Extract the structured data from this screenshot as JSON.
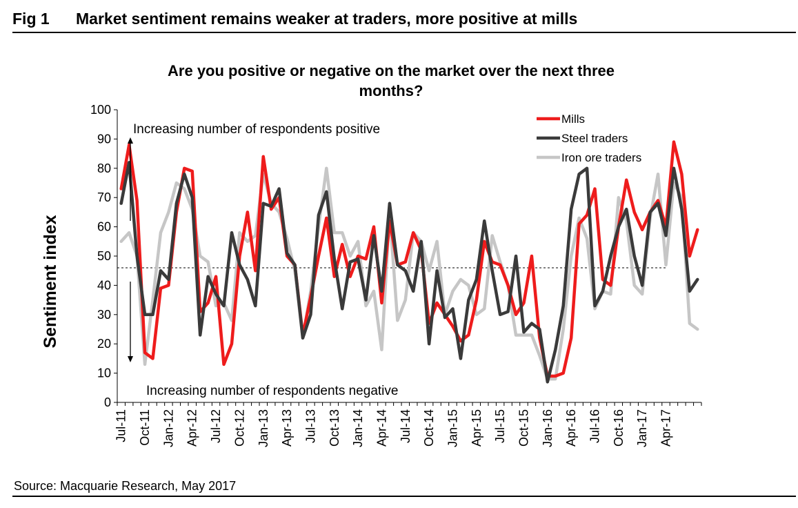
{
  "header": {
    "fig_label": "Fig 1",
    "fig_title": "Market sentiment remains weaker at traders, more positive at mills"
  },
  "footer": {
    "source": "Source: Macquarie Research, May 2017"
  },
  "colors": {
    "mills": "#ee1c1c",
    "steel_traders": "#3a3a3a",
    "iron_ore_traders": "#c6c6c6"
  },
  "chart_data": {
    "type": "line",
    "title": "Are you positive or negative on the market over the next three months?",
    "title_lines": [
      "Are you positive or negative on the market over the next three",
      "months?"
    ],
    "ylabel": "Sentiment index",
    "xlabel": "",
    "ylim": [
      0,
      100
    ],
    "yticks": [
      0,
      10,
      20,
      30,
      40,
      50,
      60,
      70,
      80,
      90,
      100
    ],
    "reference_line": 46,
    "x_tick_labels": [
      "Jul-11",
      "Oct-11",
      "Jan-12",
      "Apr-12",
      "Jul-12",
      "Oct-12",
      "Jan-13",
      "Apr-13",
      "Jul-13",
      "Oct-13",
      "Jan-14",
      "Apr-14",
      "Jul-14",
      "Oct-14",
      "Jan-15",
      "Apr-15",
      "Jul-15",
      "Oct-15",
      "Jan-16",
      "Apr-16",
      "Jul-16",
      "Oct-16",
      "Jan-17",
      "Apr-17"
    ],
    "x_start": "Jul-11",
    "x_end": "May-17",
    "annotations": {
      "positive": "Increasing number of respondents positive",
      "negative": "Increasing number of respondents negative"
    },
    "legend_position": "top-right",
    "series": [
      {
        "name": "Mills",
        "key": "mills",
        "values": [
          73,
          88,
          69,
          17,
          15,
          39,
          40,
          65,
          80,
          79,
          31,
          34,
          43,
          13,
          20,
          50,
          65,
          45,
          84,
          66,
          70,
          50,
          47,
          23,
          36,
          50,
          63,
          43,
          54,
          43,
          50,
          49,
          60,
          34,
          62,
          47,
          48,
          58,
          52,
          27,
          34,
          30,
          26,
          21,
          23,
          35,
          55,
          48,
          47,
          40,
          30,
          34,
          50,
          22,
          9,
          9,
          10,
          22,
          61,
          64,
          73,
          42,
          40,
          60,
          76,
          65,
          59,
          65,
          69,
          60,
          89,
          78,
          50,
          59
        ]
      },
      {
        "name": "Steel traders",
        "key": "steel_traders",
        "values": [
          68,
          82,
          50,
          30,
          30,
          45,
          42,
          68,
          78,
          70,
          23,
          43,
          37,
          33,
          58,
          47,
          42,
          33,
          68,
          67,
          73,
          51,
          47,
          22,
          30,
          64,
          72,
          49,
          32,
          48,
          49,
          35,
          57,
          38,
          68,
          47,
          45,
          38,
          55,
          20,
          45,
          29,
          32,
          15,
          35,
          42,
          62,
          45,
          30,
          31,
          50,
          24,
          27,
          25,
          7,
          18,
          33,
          66,
          78,
          80,
          33,
          38,
          50,
          60,
          66,
          50,
          40,
          65,
          68,
          57,
          80,
          66,
          38,
          42
        ]
      },
      {
        "name": "Iron ore traders",
        "key": "iron_ore_traders",
        "values": [
          55,
          58,
          50,
          13,
          35,
          58,
          65,
          75,
          73,
          66,
          50,
          48,
          33,
          34,
          28,
          58,
          55,
          57,
          78,
          68,
          65,
          56,
          45,
          22,
          38,
          60,
          80,
          58,
          58,
          50,
          55,
          33,
          38,
          18,
          65,
          28,
          35,
          58,
          55,
          45,
          55,
          30,
          38,
          42,
          40,
          30,
          32,
          57,
          48,
          40,
          23,
          23,
          23,
          16,
          8,
          8,
          25,
          50,
          63,
          56,
          32,
          38,
          37,
          70,
          62,
          40,
          37,
          63,
          78,
          47,
          75,
          70,
          27,
          25
        ]
      }
    ]
  }
}
